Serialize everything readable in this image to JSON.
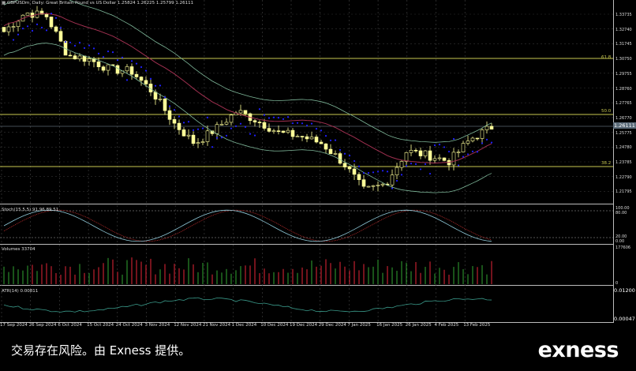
{
  "header": {
    "symbol": "GBPUSDm",
    "timeframe": "Daily",
    "description": "Great Britain Pound vs US Dollar",
    "open": "1.25824",
    "high": "1.26225",
    "low": "1.25799",
    "close": "1.26111"
  },
  "price_axis": [
    "1.33735",
    "1.32740",
    "1.31745",
    "1.30750",
    "1.29755",
    "1.28760",
    "1.27765",
    "1.26770",
    "1.25775",
    "1.24780",
    "1.23785",
    "1.22790",
    "1.21795"
  ],
  "current_price": "1.26111",
  "fib_levels": [
    "61.8",
    "50.0",
    "38.2"
  ],
  "stoch": {
    "label": "Stoch(15,5,5) 91.96 89.51",
    "ticks": [
      "100.00",
      "80.00",
      "20.00",
      "0.00"
    ]
  },
  "volumes": {
    "label": "Volumes 33704",
    "ticks": [
      "177606",
      "0"
    ]
  },
  "atr": {
    "label": "ATR(14) 0.00811",
    "ticks": [
      "0.01200",
      "0.00047"
    ]
  },
  "date_axis": [
    "17 Sep 2024",
    "26 Sep 2024",
    "6 Oct 2024",
    "15 Oct 2024",
    "24 Oct 2024",
    "3 Nov 2024",
    "12 Nov 2024",
    "21 Nov 2024",
    "1 Dec 2024",
    "10 Dec 2024",
    "19 Dec 2024",
    "29 Dec 2024",
    "7 Jan 2025",
    "16 Jan 2025",
    "26 Jan 2025",
    "4 Feb 2025",
    "13 Feb 2025"
  ],
  "price_path": [
    1.3256,
    1.3384,
    1.3363,
    1.3096,
    1.307,
    1.3,
    1.299,
    1.285,
    1.264,
    1.25,
    1.26,
    1.272,
    1.265,
    1.257,
    1.255,
    1.25,
    1.237,
    1.218,
    1.223,
    1.245,
    1.242,
    1.238,
    1.253,
    1.2611
  ],
  "colors": {
    "bull": "#ffff99",
    "bear": "#ffff99",
    "psar": "#2020ff",
    "fib": "#c8c850",
    "band": "#7fb89a",
    "ma": "#a03050",
    "stoch_main": "#8fc8d8",
    "stoch_signal": "#c83030",
    "vol_up": "#2a8a2a",
    "vol_down": "#c02030",
    "atr": "#3a9a8a"
  },
  "footer": {
    "disclaimer": "交易存在风险。由 Exness 提供。",
    "logo": "exness"
  }
}
